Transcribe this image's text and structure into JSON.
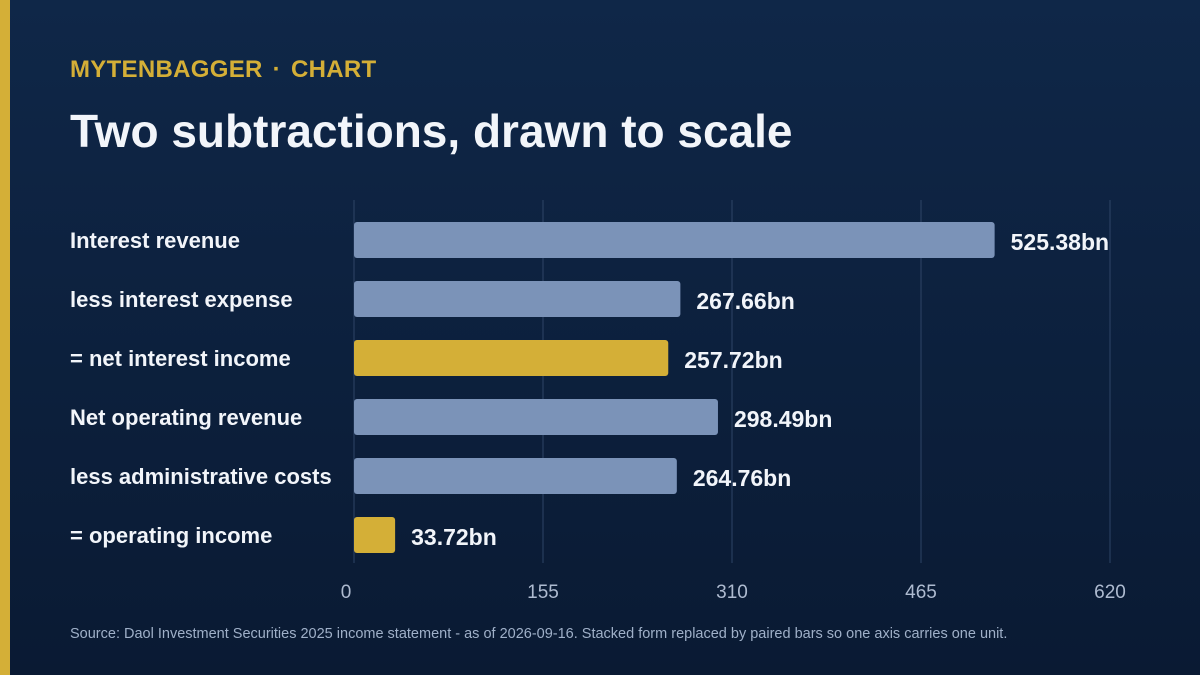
{
  "header": {
    "brand": "MYTENBAGGER",
    "separator": "·",
    "section": "CHART",
    "title": "Two subtractions, drawn to scale"
  },
  "footer": {
    "source": "Source: Daol Investment Securities 2025 income statement - as of 2026-09-16. Stacked form replaced by paired bars so one axis carries one unit."
  },
  "colors": {
    "accent": "#d4af37",
    "bar_default": "#7b93b8",
    "bar_result": "#d4af37"
  },
  "chart_data": {
    "type": "bar",
    "orientation": "horizontal",
    "categories": [
      "Interest revenue",
      "less interest expense",
      "= net interest income",
      "Net operating revenue",
      "less administrative costs",
      "= operating income"
    ],
    "values": [
      525.38,
      267.66,
      257.72,
      298.49,
      264.76,
      33.72
    ],
    "value_labels": [
      "525.38bn",
      "267.66bn",
      "257.72bn",
      "298.49bn",
      "264.76bn",
      "33.72bn"
    ],
    "highlight": [
      false,
      false,
      true,
      false,
      false,
      true
    ],
    "xlim": [
      0,
      620
    ],
    "xticks": [
      0,
      155,
      310,
      465,
      620
    ],
    "grid": true
  }
}
